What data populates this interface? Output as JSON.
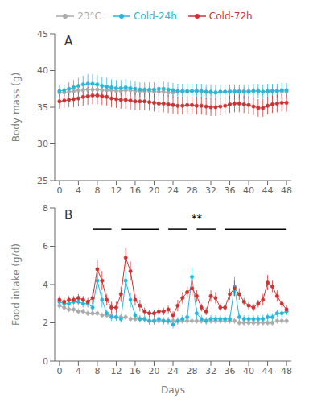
{
  "chart_data": [
    {
      "type": "line",
      "title": "A",
      "ylabel": "Body mass (g)",
      "legend": "top",
      "grid": false,
      "marker": "o",
      "line_style": "solid",
      "x": [
        0,
        1,
        2,
        3,
        4,
        5,
        6,
        7,
        8,
        9,
        10,
        11,
        12,
        13,
        14,
        15,
        16,
        17,
        18,
        19,
        20,
        21,
        22,
        23,
        24,
        25,
        26,
        27,
        28,
        29,
        30,
        31,
        32,
        33,
        34,
        35,
        36,
        37,
        38,
        39,
        40,
        41,
        42,
        43,
        44,
        45,
        46,
        47,
        48
      ],
      "xlim": [
        -1,
        49
      ],
      "xticks": [
        0,
        4,
        8,
        12,
        16,
        20,
        24,
        28,
        32,
        36,
        40,
        44,
        48
      ],
      "ylim": [
        25,
        45
      ],
      "yticks": [
        25,
        30,
        35,
        40,
        45
      ],
      "series": [
        {
          "name": "23°C",
          "color": "#aaaaaa",
          "values": [
            37.0,
            37.0,
            37.1,
            37.2,
            37.3,
            37.3,
            37.4,
            37.4,
            37.4,
            37.3,
            37.3,
            37.3,
            37.2,
            37.2,
            37.3,
            37.3,
            37.2,
            37.2,
            37.2,
            37.2,
            37.1,
            37.1,
            37.1,
            37.0,
            37.0,
            37.1,
            37.1,
            37.1,
            37.2,
            37.2,
            37.1,
            37.1,
            37.0,
            37.0,
            37.1,
            37.1,
            37.2,
            37.2,
            37.2,
            37.2,
            37.2,
            37.2,
            37.2,
            37.1,
            37.1,
            37.2,
            37.2,
            37.1,
            37.1
          ],
          "errors": [
            0.5,
            0.5,
            0.5,
            0.5,
            0.5,
            0.5,
            0.5,
            0.5,
            0.5,
            0.5,
            0.5,
            0.5,
            0.5,
            0.5,
            0.5,
            0.5,
            0.5,
            0.5,
            0.5,
            0.5,
            0.5,
            0.5,
            0.5,
            0.5,
            0.5,
            0.5,
            0.5,
            0.5,
            0.5,
            0.5,
            0.5,
            0.5,
            0.5,
            0.5,
            0.5,
            0.5,
            0.5,
            0.5,
            0.5,
            0.5,
            0.5,
            0.5,
            0.5,
            0.5,
            0.5,
            0.5,
            0.5,
            0.5,
            0.5
          ]
        },
        {
          "name": "Cold-24h",
          "color": "#29b6d8",
          "values": [
            37.2,
            37.3,
            37.5,
            37.7,
            37.9,
            38.1,
            38.2,
            38.2,
            38.1,
            37.9,
            37.8,
            37.7,
            37.6,
            37.6,
            37.7,
            37.6,
            37.5,
            37.4,
            37.4,
            37.4,
            37.4,
            37.5,
            37.5,
            37.4,
            37.3,
            37.2,
            37.2,
            37.2,
            37.2,
            37.2,
            37.2,
            37.1,
            37.1,
            37.0,
            37.1,
            37.1,
            37.1,
            37.1,
            37.1,
            37.1,
            37.1,
            37.2,
            37.2,
            37.1,
            37.2,
            37.2,
            37.2,
            37.3,
            37.3
          ],
          "errors": [
            0.8,
            0.8,
            0.9,
            1.0,
            1.1,
            1.2,
            1.3,
            1.3,
            1.3,
            1.2,
            1.2,
            1.1,
            1.1,
            1.1,
            1.1,
            1.1,
            1.0,
            1.0,
            1.0,
            1.0,
            1.0,
            1.0,
            1.0,
            1.0,
            1.0,
            1.0,
            1.0,
            1.0,
            1.0,
            1.0,
            1.0,
            1.0,
            1.0,
            1.0,
            1.0,
            1.0,
            1.0,
            1.0,
            1.0,
            1.0,
            1.0,
            1.0,
            1.0,
            1.0,
            1.0,
            1.0,
            1.0,
            1.0,
            1.0
          ]
        },
        {
          "name": "Cold-72h",
          "color": "#cc3333",
          "values": [
            35.8,
            35.9,
            36.0,
            36.1,
            36.2,
            36.4,
            36.5,
            36.6,
            36.6,
            36.5,
            36.4,
            36.2,
            36.1,
            36.0,
            36.0,
            35.9,
            35.8,
            35.8,
            35.8,
            35.7,
            35.6,
            35.5,
            35.5,
            35.4,
            35.3,
            35.2,
            35.2,
            35.3,
            35.3,
            35.2,
            35.2,
            35.1,
            35.0,
            35.0,
            35.1,
            35.2,
            35.4,
            35.5,
            35.5,
            35.4,
            35.3,
            35.1,
            34.9,
            34.9,
            35.2,
            35.4,
            35.5,
            35.6,
            35.6
          ],
          "errors": [
            1.0,
            1.0,
            1.0,
            1.1,
            1.1,
            1.2,
            1.2,
            1.2,
            1.2,
            1.2,
            1.2,
            1.2,
            1.2,
            1.2,
            1.2,
            1.2,
            1.2,
            1.2,
            1.2,
            1.2,
            1.2,
            1.2,
            1.2,
            1.2,
            1.2,
            1.2,
            1.2,
            1.2,
            1.2,
            1.2,
            1.2,
            1.2,
            1.2,
            1.2,
            1.2,
            1.2,
            1.2,
            1.2,
            1.2,
            1.2,
            1.2,
            1.2,
            1.2,
            1.2,
            1.2,
            1.2,
            1.2,
            1.2,
            1.2
          ]
        }
      ]
    },
    {
      "type": "line",
      "title": "B",
      "ylabel": "Food intake (g/d)",
      "xlabel": "Days",
      "grid": false,
      "marker": "o",
      "line_style": "solid",
      "x": [
        0,
        1,
        2,
        3,
        4,
        5,
        6,
        7,
        8,
        9,
        10,
        11,
        12,
        13,
        14,
        15,
        16,
        17,
        18,
        19,
        20,
        21,
        22,
        23,
        24,
        25,
        26,
        27,
        28,
        29,
        30,
        31,
        32,
        33,
        34,
        35,
        36,
        37,
        38,
        39,
        40,
        41,
        42,
        43,
        44,
        45,
        46,
        47,
        48
      ],
      "xlim": [
        -1,
        49
      ],
      "xticks": [
        0,
        4,
        8,
        12,
        16,
        20,
        24,
        28,
        32,
        36,
        40,
        44,
        48
      ],
      "ylim": [
        0,
        8
      ],
      "yticks": [
        0,
        2,
        4,
        6,
        8
      ],
      "series": [
        {
          "name": "23°C",
          "color": "#aaaaaa",
          "values": [
            2.9,
            2.8,
            2.7,
            2.7,
            2.6,
            2.6,
            2.5,
            2.5,
            2.5,
            2.4,
            2.4,
            2.4,
            2.3,
            2.3,
            2.3,
            2.2,
            2.2,
            2.2,
            2.2,
            2.1,
            2.1,
            2.1,
            2.1,
            2.1,
            2.1,
            2.1,
            2.1,
            2.1,
            2.1,
            2.1,
            2.1,
            2.1,
            2.1,
            2.1,
            2.1,
            2.1,
            2.1,
            2.1,
            2.0,
            2.0,
            2.0,
            2.0,
            2.0,
            2.0,
            2.0,
            2.0,
            2.1,
            2.1,
            2.1
          ],
          "errors": [
            0.15,
            0.15,
            0.15,
            0.15,
            0.15,
            0.15,
            0.15,
            0.15,
            0.15,
            0.15,
            0.15,
            0.15,
            0.15,
            0.15,
            0.15,
            0.15,
            0.15,
            0.15,
            0.15,
            0.15,
            0.15,
            0.15,
            0.15,
            0.15,
            0.15,
            0.15,
            0.15,
            0.15,
            0.15,
            0.15,
            0.15,
            0.15,
            0.15,
            0.15,
            0.15,
            0.15,
            0.15,
            0.15,
            0.15,
            0.15,
            0.15,
            0.15,
            0.15,
            0.15,
            0.15,
            0.15,
            0.15,
            0.15,
            0.15
          ]
        },
        {
          "name": "Cold-24h",
          "color": "#29b6d8",
          "values": [
            3.1,
            3.0,
            3.0,
            3.1,
            3.1,
            3.0,
            3.0,
            2.8,
            4.2,
            3.2,
            2.5,
            2.3,
            2.3,
            2.2,
            4.2,
            3.2,
            2.4,
            2.2,
            2.2,
            2.1,
            2.1,
            2.2,
            2.1,
            2.1,
            1.9,
            2.1,
            2.2,
            2.3,
            4.4,
            2.5,
            2.2,
            2.1,
            2.2,
            2.2,
            2.2,
            2.2,
            2.2,
            3.9,
            2.3,
            2.2,
            2.2,
            2.2,
            2.2,
            2.2,
            2.3,
            2.3,
            2.5,
            2.5,
            2.6
          ],
          "errors": [
            0.2,
            0.2,
            0.2,
            0.2,
            0.2,
            0.2,
            0.2,
            0.3,
            0.5,
            0.4,
            0.2,
            0.2,
            0.2,
            0.2,
            0.5,
            0.4,
            0.2,
            0.2,
            0.2,
            0.2,
            0.2,
            0.2,
            0.2,
            0.2,
            0.2,
            0.2,
            0.2,
            0.2,
            0.5,
            0.3,
            0.2,
            0.2,
            0.2,
            0.2,
            0.2,
            0.2,
            0.2,
            0.5,
            0.2,
            0.2,
            0.2,
            0.2,
            0.2,
            0.2,
            0.2,
            0.2,
            0.2,
            0.2,
            0.2
          ]
        },
        {
          "name": "Cold-72h",
          "color": "#cc3333",
          "values": [
            3.2,
            3.1,
            3.2,
            3.2,
            3.3,
            3.2,
            3.1,
            3.3,
            4.8,
            4.2,
            3.2,
            2.8,
            2.8,
            3.5,
            5.4,
            4.7,
            3.2,
            2.9,
            2.6,
            2.5,
            2.5,
            2.6,
            2.6,
            2.7,
            2.4,
            2.9,
            3.3,
            3.6,
            3.8,
            3.4,
            2.8,
            2.6,
            3.4,
            3.3,
            2.8,
            2.8,
            3.5,
            3.8,
            3.5,
            3.1,
            2.9,
            2.8,
            3.0,
            3.2,
            4.1,
            3.9,
            3.4,
            3.0,
            2.7
          ],
          "errors": [
            0.2,
            0.2,
            0.2,
            0.2,
            0.2,
            0.2,
            0.2,
            0.3,
            0.5,
            0.5,
            0.3,
            0.3,
            0.3,
            0.4,
            0.5,
            0.5,
            0.3,
            0.3,
            0.2,
            0.2,
            0.2,
            0.2,
            0.2,
            0.2,
            0.2,
            0.3,
            0.3,
            0.3,
            0.4,
            0.3,
            0.2,
            0.2,
            0.3,
            0.3,
            0.2,
            0.2,
            0.3,
            0.4,
            0.3,
            0.2,
            0.2,
            0.2,
            0.2,
            0.3,
            0.4,
            0.3,
            0.3,
            0.2,
            0.2
          ]
        }
      ],
      "significance": {
        "y": 6.9,
        "segments": [
          [
            7,
            11
          ],
          [
            13,
            21
          ],
          [
            23,
            27
          ],
          [
            29,
            33
          ],
          [
            35,
            48
          ]
        ],
        "label": "**",
        "label_x": 29,
        "label_y": 7.05
      }
    }
  ]
}
